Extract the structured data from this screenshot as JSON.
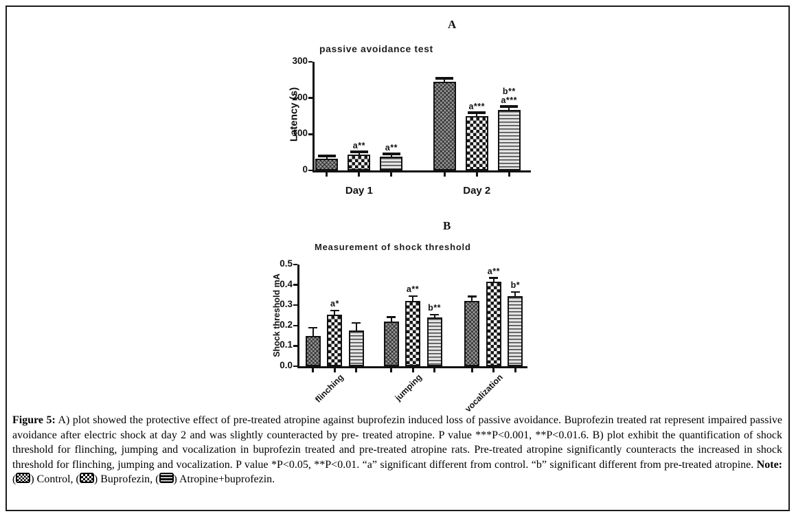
{
  "chart_data": [
    {
      "id": "A",
      "type": "bar",
      "panel_label": "A",
      "title": "passive avoidance test",
      "xlabel": "",
      "ylabel": "Latency (s)",
      "ylim": [
        0,
        300
      ],
      "yticks": [
        "0",
        "100",
        "200",
        "300"
      ],
      "grid": false,
      "legend_position": "none",
      "categories": [
        "Day 1",
        "Day 2"
      ],
      "series": [
        {
          "name": "Control",
          "pattern": "control",
          "values": [
            32,
            245
          ],
          "errors": [
            4,
            5
          ],
          "annotations": [
            "",
            ""
          ]
        },
        {
          "name": "Buprofezin",
          "pattern": "buprofezin",
          "values": [
            43,
            150
          ],
          "errors": [
            4,
            5
          ],
          "annotations": [
            "a**",
            "a***"
          ]
        },
        {
          "name": "Atropine+buprofezin",
          "pattern": "atropine",
          "values": [
            38,
            168
          ],
          "errors": [
            3,
            4
          ],
          "annotations": [
            "a**",
            "b**\na***"
          ]
        }
      ]
    },
    {
      "id": "B",
      "type": "bar",
      "panel_label": "B",
      "title": "Measurement of shock threshold",
      "xlabel": "",
      "ylabel": "Shock threshold mA",
      "ylim": [
        0,
        0.5
      ],
      "yticks": [
        "0.0",
        "0.1",
        "0.2",
        "0.3",
        "0.4",
        "0.5"
      ],
      "grid": false,
      "legend_position": "none",
      "categories": [
        "flinching",
        "jumping",
        "vocalization"
      ],
      "series": [
        {
          "name": "Control",
          "pattern": "control",
          "values": [
            0.15,
            0.22,
            0.32
          ],
          "errors": [
            0.035,
            0.018,
            0.018
          ],
          "annotations": [
            "",
            "",
            ""
          ]
        },
        {
          "name": "Buprofezin",
          "pattern": "buprofezin",
          "values": [
            0.255,
            0.32,
            0.415
          ],
          "errors": [
            0.015,
            0.02,
            0.015
          ],
          "annotations": [
            "a*",
            "a**",
            "a**"
          ]
        },
        {
          "name": "Atropine+buprofezin",
          "pattern": "atropine",
          "values": [
            0.175,
            0.24,
            0.345
          ],
          "errors": [
            0.033,
            0.01,
            0.015
          ],
          "annotations": [
            "",
            "b**",
            "b*"
          ]
        }
      ]
    }
  ],
  "caption": {
    "label": "Figure 5:",
    "body": " A) plot showed the protective effect of pre-treated atropine against buprofezin induced loss of passive avoidance. Buprofezin treated rat represent impaired passive avoidance after electric shock at day 2 and was slightly counteracted by pre- treated atropine. P value ***P<0.001, **P<0.01.6. B) plot exhibit the quantification of shock threshold for flinching, jumping and vocalization in buprofezin treated and pre-treated atropine rats. Pre-treated atropine significantly counteracts the increased in shock threshold for flinching, jumping and vocalization. P value *P<0.05, **P<0.01. “a” significant different from control. “b” significant different from pre-treated atropine. ",
    "note_label": "Note:",
    "legend": [
      {
        "pre": " (",
        "label": ") Control, ",
        "pattern": "control"
      },
      {
        "pre": "(",
        "label": ") Buprofezin, ",
        "pattern": "buprofezin"
      },
      {
        "pre": "(",
        "label": ") Atropine+buprofezin.",
        "pattern": "atropine"
      }
    ]
  }
}
